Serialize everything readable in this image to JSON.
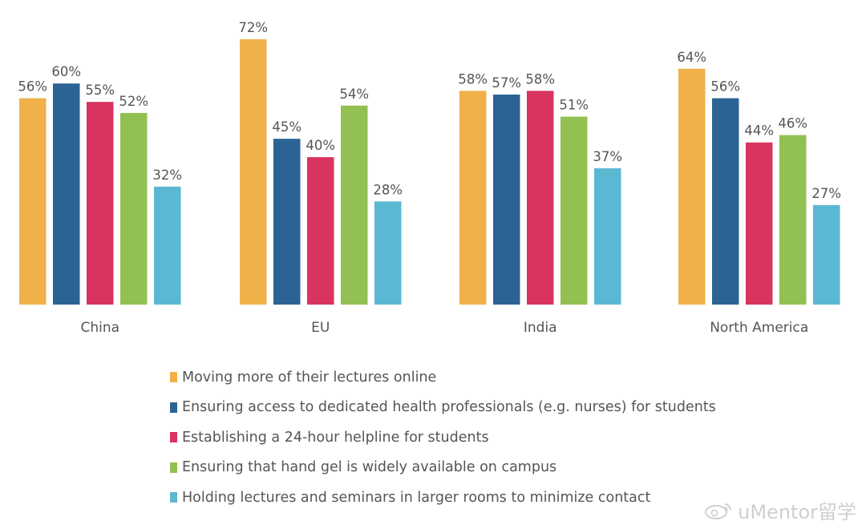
{
  "chart_data": {
    "type": "bar",
    "categories": [
      "China",
      "EU",
      "India",
      "North America"
    ],
    "series": [
      {
        "name": "Moving more of their lectures online",
        "color": "#f0b04a",
        "values": [
          56,
          72,
          58,
          64
        ]
      },
      {
        "name": "Ensuring access to dedicated health professionals (e.g. nurses) for students",
        "color": "#2b6494",
        "values": [
          60,
          45,
          57,
          56
        ]
      },
      {
        "name": "Establishing a 24-hour helpline for students",
        "color": "#d9345f",
        "values": [
          55,
          40,
          58,
          44
        ]
      },
      {
        "name": "Ensuring that hand gel is widely available on campus",
        "color": "#93c052",
        "values": [
          52,
          54,
          51,
          46
        ]
      },
      {
        "name": "Holding lectures and seminars in larger rooms to minimize contact",
        "color": "#5bb8d3",
        "values": [
          32,
          28,
          37,
          27
        ]
      }
    ],
    "value_suffix": "%",
    "ylim": [
      0,
      72
    ],
    "grid": false,
    "legend_position": "bottom"
  },
  "watermark": {
    "text": "uMentor留学",
    "icon": "weibo-icon"
  }
}
